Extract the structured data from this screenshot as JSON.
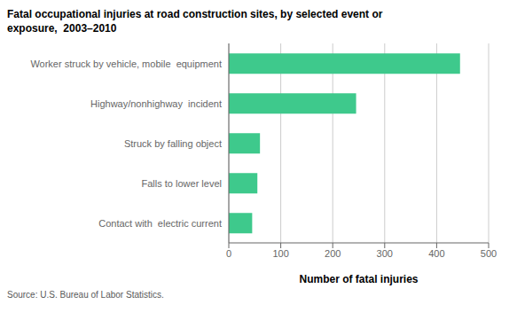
{
  "chart_data": {
    "type": "bar",
    "orientation": "horizontal",
    "title": "Fatal occupational injuries at road construction sites, by selected event or\nexposure,  2003–2010",
    "categories": [
      "Contact with  electric current",
      "Falls to lower level",
      "Struck by falling object",
      "Highway/nonhighway  incident",
      "Worker struck by vehicle, mobile  equipment"
    ],
    "values": [
      45,
      55,
      60,
      245,
      445
    ],
    "color": "#3EC98C",
    "xlabel": "Number of fatal injuries",
    "xlim": [
      0,
      500
    ],
    "xticks": [
      0,
      100,
      200,
      300,
      400,
      500
    ],
    "grid": true,
    "source": "Source: U.S. Bureau of Labor Statistics."
  }
}
